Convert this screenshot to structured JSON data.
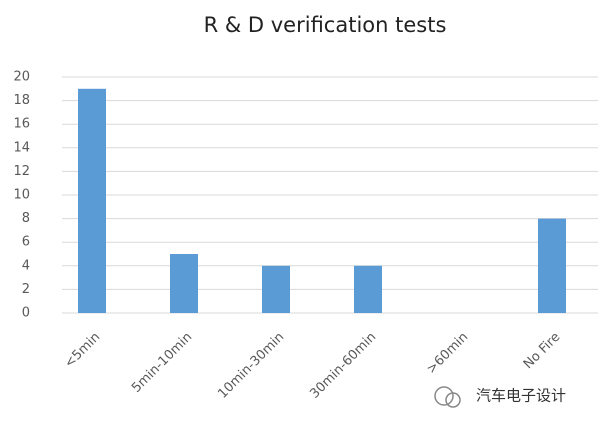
{
  "chart_data": {
    "type": "bar",
    "title": "R & D verification tests",
    "categories": [
      "<5min",
      "5min-10min",
      "10min-30min",
      "30min-60min",
      ">60min",
      "No Fire"
    ],
    "values": [
      19,
      5,
      4,
      4,
      0,
      8
    ],
    "color": "#5b9bd5",
    "ylim": [
      0,
      20
    ],
    "yticks": [
      0,
      2,
      4,
      6,
      8,
      10,
      12,
      14,
      16,
      18,
      20
    ],
    "grid": true
  },
  "watermark": "汽车电子设计"
}
